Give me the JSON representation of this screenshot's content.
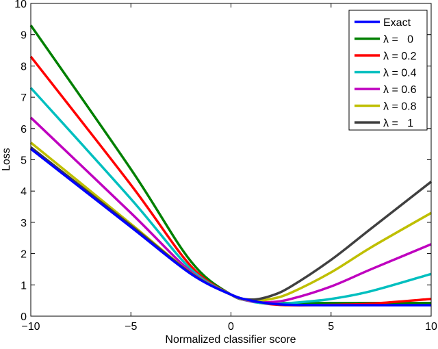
{
  "chart_data": {
    "type": "line",
    "title": "",
    "xlabel": "Normalized classifier score",
    "ylabel": "Loss",
    "xlim": [
      -10,
      10
    ],
    "ylim": [
      0,
      10
    ],
    "xticks": [
      "−10",
      "−5",
      "0",
      "5",
      "10"
    ],
    "xtick_values": [
      -10,
      -5,
      0,
      5,
      10
    ],
    "yticks": [
      "0",
      "1",
      "2",
      "3",
      "4",
      "5",
      "6",
      "7",
      "8",
      "9",
      "10"
    ],
    "ytick_values": [
      0,
      1,
      2,
      3,
      4,
      5,
      6,
      7,
      8,
      9,
      10
    ],
    "grid": false,
    "legend_position": "top-right",
    "x": [
      -10,
      -5,
      -2,
      0,
      1,
      2,
      3,
      5,
      7,
      10
    ],
    "series": [
      {
        "name": "Exact",
        "color": "#0000ff",
        "values": [
          5.35,
          2.85,
          1.35,
          0.69,
          0.5,
          0.4,
          0.36,
          0.35,
          0.35,
          0.35
        ]
      },
      {
        "name": "λ =   0",
        "color": "#008000",
        "values": [
          9.3,
          4.7,
          1.75,
          0.69,
          0.5,
          0.43,
          0.42,
          0.42,
          0.42,
          0.42
        ]
      },
      {
        "name": "λ = 0.2",
        "color": "#ff0000",
        "values": [
          8.3,
          4.2,
          1.6,
          0.69,
          0.48,
          0.38,
          0.35,
          0.36,
          0.4,
          0.55
        ]
      },
      {
        "name": "λ = 0.4",
        "color": "#00bfbf",
        "values": [
          7.3,
          3.75,
          1.5,
          0.69,
          0.47,
          0.4,
          0.42,
          0.55,
          0.8,
          1.35
        ]
      },
      {
        "name": "λ = 0.6",
        "color": "#bf00bf",
        "values": [
          6.35,
          3.3,
          1.42,
          0.69,
          0.48,
          0.45,
          0.55,
          0.95,
          1.5,
          2.3
        ]
      },
      {
        "name": "λ = 0.8",
        "color": "#bfbf00",
        "values": [
          5.55,
          2.95,
          1.38,
          0.69,
          0.5,
          0.55,
          0.75,
          1.4,
          2.2,
          3.3
        ]
      },
      {
        "name": "λ =   1",
        "color": "#404040",
        "values": [
          5.4,
          2.9,
          1.37,
          0.69,
          0.53,
          0.65,
          0.95,
          1.8,
          2.8,
          4.3
        ]
      }
    ]
  }
}
